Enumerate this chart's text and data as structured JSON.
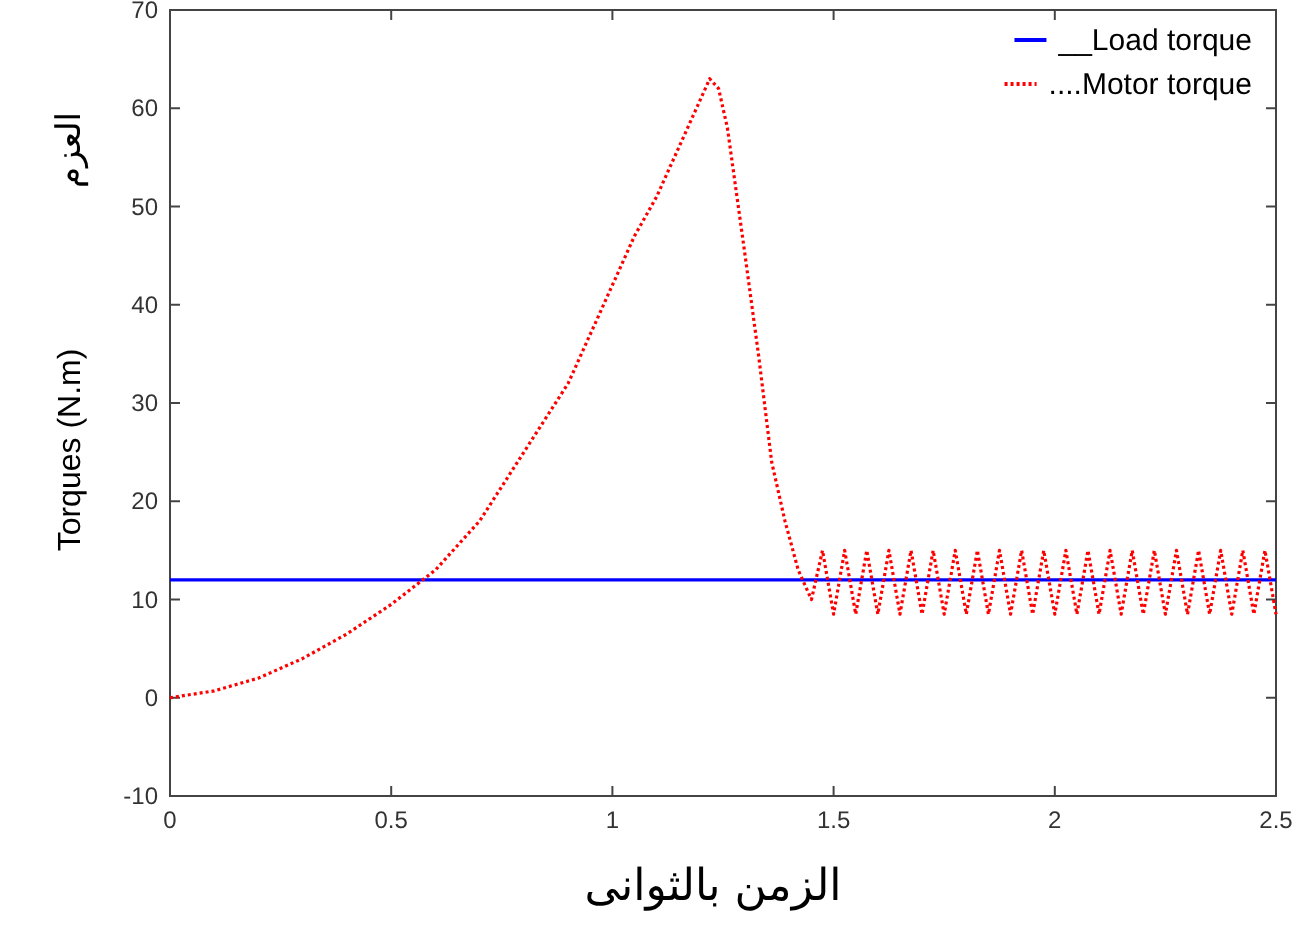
{
  "chart_data": {
    "type": "line",
    "xlabel": "الزمن بالثوانى",
    "ylabel": "Torques (N.m)",
    "annotations": [
      "العزم"
    ],
    "xlim": [
      0,
      2.5
    ],
    "ylim": [
      -10,
      70
    ],
    "xticks": [
      0,
      0.5,
      1,
      1.5,
      2,
      2.5
    ],
    "yticks": [
      -10,
      0,
      10,
      20,
      30,
      40,
      50,
      60,
      70
    ],
    "legend": "top right",
    "grid": false,
    "series": [
      {
        "name": "__Load torque",
        "color": "#0000ff",
        "line_style": "solid",
        "x": [
          0,
          2.5
        ],
        "values": [
          12,
          12
        ]
      },
      {
        "name": "....Motor torque",
        "color": "#ff0000",
        "line_style": "dotted",
        "x": [
          0,
          0.1,
          0.2,
          0.3,
          0.4,
          0.5,
          0.6,
          0.7,
          0.8,
          0.9,
          1.0,
          1.05,
          1.1,
          1.15,
          1.2,
          1.22,
          1.24,
          1.26,
          1.3,
          1.33,
          1.36,
          1.39,
          1.42,
          1.45,
          1.475,
          1.5,
          1.525,
          1.55,
          1.575,
          1.6,
          1.625,
          1.65,
          1.675,
          1.7,
          1.725,
          1.75,
          1.775,
          1.8,
          1.825,
          1.85,
          1.875,
          1.9,
          1.925,
          1.95,
          1.975,
          2.0,
          2.025,
          2.05,
          2.075,
          2.1,
          2.125,
          2.15,
          2.175,
          2.2,
          2.225,
          2.25,
          2.275,
          2.3,
          2.325,
          2.35,
          2.375,
          2.4,
          2.425,
          2.45,
          2.475,
          2.5
        ],
        "values": [
          0,
          0.7,
          2,
          4,
          6.5,
          9.5,
          13,
          18,
          25,
          32,
          42,
          47,
          51,
          56,
          61,
          63,
          62,
          58,
          45,
          35,
          24,
          18,
          13,
          10,
          15,
          8.5,
          15,
          8.5,
          15,
          8.5,
          15,
          8.5,
          15,
          8.5,
          15,
          8.5,
          15,
          8.5,
          15,
          8.5,
          15,
          8.5,
          15,
          8.5,
          15,
          8.5,
          15,
          8.5,
          15,
          8.5,
          15,
          8.5,
          15,
          8.5,
          15,
          8.5,
          15,
          8.5,
          15,
          8.5,
          15,
          8.5,
          15,
          8.5,
          15,
          8.5
        ]
      }
    ]
  }
}
